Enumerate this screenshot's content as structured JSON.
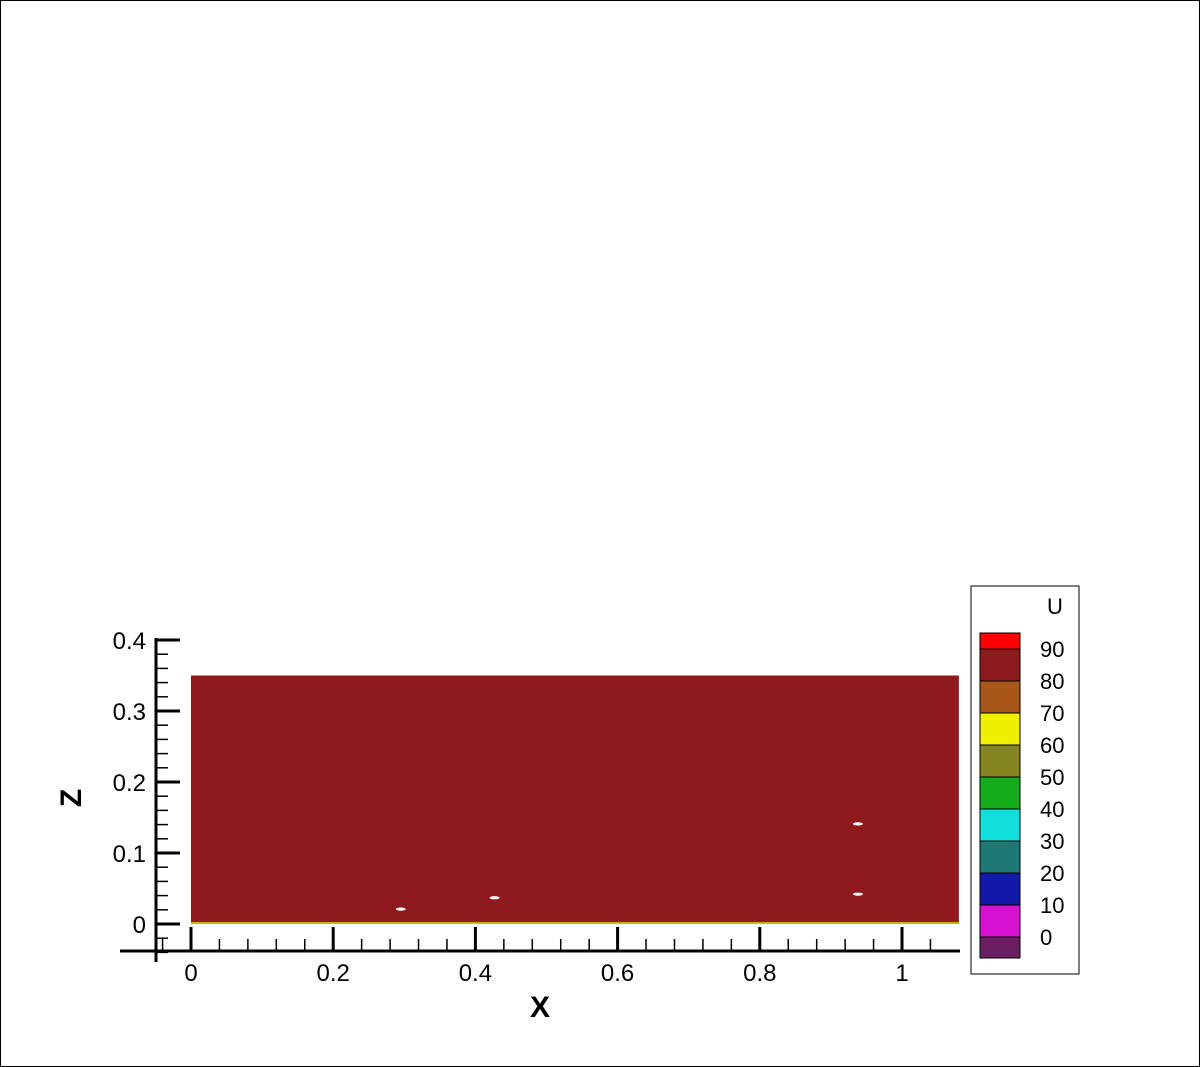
{
  "chart_data": {
    "type": "heatmap",
    "title": "",
    "xlabel": "X",
    "ylabel": "Z",
    "xlim": [
      -0.05,
      1.07
    ],
    "ylim": [
      -0.04,
      0.4
    ],
    "x_ticks": [
      0,
      0.2,
      0.4,
      0.6,
      0.8,
      1
    ],
    "x_tick_labels": [
      "0",
      "0.2",
      "0.4",
      "0.6",
      "0.8",
      "1"
    ],
    "y_ticks": [
      0,
      0.1,
      0.2,
      0.3,
      0.4
    ],
    "y_tick_labels": [
      "0",
      "0.1",
      "0.2",
      "0.3",
      "0.4"
    ],
    "domain": {
      "x": [
        0,
        1.08
      ],
      "z": [
        0,
        0.35
      ]
    },
    "field_value_range": "80-90",
    "field_color": "#8f1a1e",
    "bottom_strip_color": "#c9b21a",
    "legend": {
      "title": "U",
      "levels": [
        {
          "label": "",
          "color": "#ff0000"
        },
        {
          "label": "90",
          "color": "#8f1a1e"
        },
        {
          "label": "80",
          "color": "#a9561a"
        },
        {
          "label": "70",
          "color": "#eef000"
        },
        {
          "label": "60",
          "color": "#858621"
        },
        {
          "label": "50",
          "color": "#15ac1b"
        },
        {
          "label": "40",
          "color": "#11e0dd"
        },
        {
          "label": "30",
          "color": "#1d7876"
        },
        {
          "label": "20",
          "color": "#1319a7"
        },
        {
          "label": "10",
          "color": "#d412d0"
        },
        {
          "label": "0",
          "color": "#6a1f63"
        }
      ]
    },
    "spots": [
      {
        "x": 0.295,
        "z": 0.021
      },
      {
        "x": 0.427,
        "z": 0.037
      },
      {
        "x": 0.938,
        "z": 0.141
      },
      {
        "x": 0.938,
        "z": 0.042
      }
    ]
  }
}
